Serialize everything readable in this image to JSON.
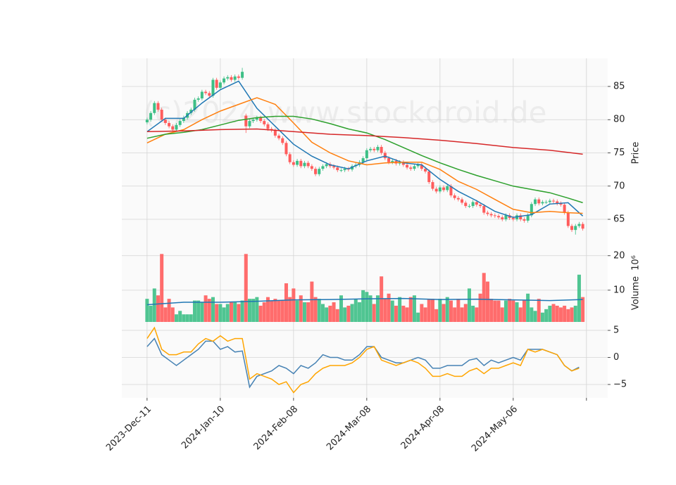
{
  "watermark": "(c)2024 www.stockdroid.de",
  "chart_data": [
    {
      "type": "candlestick",
      "ylabel": "Price",
      "ylim": [
        60.77,
        89.23
      ],
      "yticks": [
        65,
        70,
        75,
        80,
        85
      ],
      "xlim": [
        -6.9,
        125.8
      ],
      "grid": true,
      "up_color": "#3dbf86",
      "down_color": "#ff5c5c",
      "open": [
        79.6,
        80.0,
        81.0,
        82.5,
        81.5,
        80.0,
        79.5,
        79.0,
        78.5,
        79.2,
        79.8,
        80.3,
        81.0,
        81.5,
        83.0,
        83.2,
        84.2,
        84.0,
        83.6,
        86.0,
        84.8,
        85.6,
        86.2,
        86.4,
        86.0,
        86.5,
        86.3,
        80.6,
        79.0,
        79.8,
        80.0,
        80.3,
        79.8,
        79.3,
        78.6,
        78.4,
        77.6,
        77.2,
        76.5,
        74.8,
        73.6,
        73.2,
        73.8,
        73.0,
        73.5,
        73.0,
        72.6,
        71.8,
        72.6,
        73.0,
        73.3,
        73.0,
        72.8,
        72.4,
        72.4,
        72.6,
        72.5,
        73.0,
        73.2,
        73.6,
        74.2,
        75.4,
        75.6,
        75.4,
        75.9,
        75.0,
        74.2,
        73.6,
        73.8,
        73.4,
        73.6,
        73.2,
        72.8,
        72.6,
        73.0,
        73.2,
        72.6,
        72.2,
        70.6,
        69.6,
        69.2,
        69.8,
        69.4,
        70.0,
        68.6,
        68.2,
        68.0,
        67.5,
        67.0,
        67.0,
        67.6,
        67.2,
        67.0,
        66.0,
        65.8,
        65.6,
        65.5,
        65.3,
        65.0,
        65.6,
        65.2,
        65.0,
        65.6,
        65.0,
        64.8,
        65.6,
        67.3,
        68.0,
        67.4,
        67.6,
        67.6,
        67.8,
        67.7,
        67.4,
        67.2,
        66.0,
        64.0,
        63.4,
        64.0,
        64.3
      ],
      "high": [
        80.3,
        81.3,
        82.8,
        82.8,
        81.8,
        80.3,
        79.8,
        79.3,
        79.5,
        80.1,
        80.6,
        81.3,
        81.8,
        83.3,
        83.5,
        84.5,
        84.5,
        84.3,
        86.3,
        86.3,
        85.9,
        86.5,
        86.7,
        86.7,
        86.8,
        86.8,
        87.8,
        80.9,
        80.1,
        80.3,
        80.6,
        80.6,
        80.1,
        79.6,
        78.9,
        78.7,
        77.9,
        77.5,
        76.8,
        75.1,
        73.9,
        74.1,
        74.1,
        73.8,
        73.8,
        73.3,
        72.9,
        72.9,
        73.3,
        73.6,
        73.6,
        73.3,
        73.1,
        72.7,
        72.9,
        72.9,
        73.3,
        73.5,
        73.9,
        74.5,
        75.7,
        75.9,
        75.9,
        76.2,
        76.2,
        75.3,
        74.5,
        74.1,
        74.1,
        73.9,
        73.9,
        73.5,
        73.1,
        73.3,
        73.5,
        73.5,
        72.9,
        72.5,
        70.9,
        69.9,
        70.1,
        70.1,
        70.3,
        70.3,
        68.9,
        68.5,
        68.3,
        67.8,
        67.3,
        67.9,
        67.9,
        67.5,
        67.3,
        66.3,
        66.1,
        65.9,
        65.8,
        65.6,
        65.9,
        65.9,
        65.5,
        65.9,
        65.9,
        65.3,
        65.9,
        67.6,
        68.3,
        68.3,
        67.9,
        67.9,
        68.1,
        68.1,
        68.0,
        67.7,
        67.5,
        66.3,
        64.3,
        64.3,
        64.6,
        64.6
      ],
      "low": [
        79.3,
        79.7,
        80.7,
        81.2,
        79.7,
        79.2,
        78.7,
        78.2,
        78.2,
        78.9,
        79.5,
        80.0,
        80.7,
        81.2,
        82.7,
        82.9,
        83.7,
        83.3,
        83.3,
        84.5,
        84.5,
        85.3,
        85.9,
        85.7,
        85.7,
        86.0,
        86.0,
        78.0,
        78.7,
        79.5,
        79.7,
        79.5,
        79.0,
        78.3,
        78.1,
        77.3,
        76.9,
        76.2,
        74.5,
        73.3,
        72.9,
        72.9,
        72.7,
        72.7,
        72.7,
        72.3,
        71.5,
        71.5,
        72.3,
        72.7,
        72.7,
        72.5,
        72.1,
        72.1,
        72.1,
        72.2,
        72.2,
        72.7,
        72.9,
        73.3,
        73.9,
        75.1,
        75.1,
        75.1,
        74.7,
        73.9,
        73.3,
        73.3,
        73.1,
        73.1,
        72.9,
        72.5,
        72.3,
        72.3,
        72.7,
        72.3,
        71.9,
        70.3,
        69.3,
        68.9,
        68.9,
        69.1,
        69.1,
        68.3,
        67.9,
        67.7,
        67.2,
        66.7,
        66.7,
        66.7,
        66.9,
        66.7,
        65.7,
        65.5,
        65.3,
        65.2,
        65.0,
        64.7,
        64.7,
        64.9,
        64.7,
        64.7,
        64.7,
        64.5,
        64.5,
        65.3,
        67.0,
        67.1,
        67.1,
        67.3,
        67.3,
        67.4,
        67.1,
        66.9,
        65.7,
        63.7,
        63.1,
        62.7,
        63.7,
        63.3
      ],
      "close": [
        80.0,
        81.0,
        82.5,
        81.5,
        80.0,
        79.5,
        79.0,
        78.5,
        79.2,
        79.8,
        80.3,
        81.0,
        81.5,
        83.0,
        83.2,
        84.2,
        84.0,
        83.6,
        86.0,
        84.8,
        85.6,
        86.2,
        86.4,
        86.0,
        86.5,
        86.3,
        87.2,
        79.0,
        79.8,
        80.0,
        80.3,
        79.8,
        79.3,
        78.6,
        78.4,
        77.6,
        77.2,
        76.5,
        74.8,
        73.6,
        73.2,
        73.8,
        73.0,
        73.5,
        73.0,
        72.6,
        71.8,
        72.6,
        73.0,
        73.3,
        73.0,
        72.8,
        72.4,
        72.4,
        72.6,
        72.5,
        73.0,
        73.2,
        73.6,
        74.2,
        75.4,
        75.6,
        75.4,
        75.9,
        75.0,
        74.2,
        73.6,
        73.8,
        73.4,
        73.6,
        73.2,
        72.8,
        72.6,
        73.0,
        73.2,
        72.6,
        72.2,
        70.6,
        69.6,
        69.2,
        69.8,
        69.4,
        70.0,
        68.6,
        68.2,
        68.0,
        67.5,
        67.0,
        67.0,
        67.6,
        67.2,
        67.0,
        66.0,
        65.8,
        65.6,
        65.5,
        65.3,
        65.0,
        65.6,
        65.2,
        65.0,
        65.6,
        65.0,
        64.8,
        65.6,
        67.3,
        68.0,
        67.4,
        67.6,
        67.6,
        67.8,
        67.7,
        67.4,
        67.2,
        66.0,
        64.0,
        63.4,
        64.0,
        64.3,
        63.6
      ],
      "series": [
        {
          "color": "#1f77b4",
          "x": [
            0,
            5,
            10,
            15,
            20,
            25,
            30,
            35,
            40,
            45,
            50,
            55,
            60,
            65,
            70,
            75,
            80,
            85,
            90,
            95,
            100,
            105,
            110,
            115,
            119
          ],
          "values": [
            78.2,
            80.2,
            80.2,
            82.5,
            84.5,
            85.8,
            81.7,
            79.0,
            76.3,
            74.5,
            73.2,
            72.6,
            73.8,
            74.5,
            73.5,
            73.2,
            71.0,
            69.2,
            67.8,
            66.2,
            65.3,
            65.7,
            67.3,
            67.5,
            65.5
          ]
        },
        {
          "color": "#ff7f0e",
          "x": [
            0,
            5,
            10,
            15,
            20,
            25,
            30,
            35,
            40,
            45,
            50,
            55,
            60,
            65,
            70,
            75,
            80,
            85,
            90,
            95,
            100,
            105,
            110,
            115,
            119
          ],
          "values": [
            76.5,
            77.8,
            78.5,
            80.0,
            81.3,
            82.3,
            83.3,
            82.3,
            79.5,
            76.6,
            75.0,
            73.8,
            73.2,
            73.5,
            73.6,
            73.6,
            72.5,
            70.7,
            69.5,
            68.0,
            66.5,
            66.0,
            66.2,
            66.0,
            65.9
          ]
        },
        {
          "color": "#2ca02c",
          "x": [
            0,
            5,
            10,
            15,
            20,
            25,
            30,
            35,
            40,
            45,
            50,
            55,
            60,
            65,
            70,
            75,
            80,
            85,
            90,
            95,
            100,
            105,
            110,
            115,
            119
          ],
          "values": [
            77.2,
            77.8,
            78.1,
            78.5,
            79.2,
            79.9,
            80.3,
            80.5,
            80.5,
            80.1,
            79.4,
            78.6,
            78.0,
            77.0,
            75.8,
            74.6,
            73.5,
            72.5,
            71.6,
            70.8,
            70.0,
            69.5,
            69.0,
            68.2,
            67.5
          ]
        },
        {
          "color": "#d62728",
          "x": [
            0,
            10,
            20,
            30,
            40,
            50,
            60,
            70,
            80,
            90,
            100,
            110,
            119
          ],
          "values": [
            78.2,
            78.3,
            78.5,
            78.6,
            78.2,
            77.8,
            77.6,
            77.3,
            76.9,
            76.4,
            75.8,
            75.4,
            74.8
          ]
        }
      ]
    },
    {
      "type": "bar",
      "ylabel": "Volume",
      "scale_label": "10⁶",
      "ylim": [
        0.8,
        22.4
      ],
      "yticks": [
        10,
        20
      ],
      "xlim": [
        -6.9,
        125.8
      ],
      "grid": true,
      "values": [
        7.5,
        5.5,
        10.5,
        8.5,
        20.5,
        5,
        7.5,
        5,
        3,
        4,
        3,
        3,
        3,
        7,
        7,
        6.5,
        8.5,
        7.5,
        8,
        6,
        6,
        5,
        6,
        6.5,
        6.5,
        6,
        7,
        20.5,
        7.5,
        7.5,
        8,
        5.5,
        6.5,
        8,
        7,
        7.5,
        7,
        7,
        12,
        8,
        10.5,
        7,
        8.5,
        6.5,
        6.5,
        12.5,
        8,
        7.5,
        6,
        5,
        5.5,
        6.5,
        4.5,
        8.5,
        5,
        5.5,
        6,
        7.5,
        6.5,
        10,
        9.5,
        8.5,
        6,
        8.5,
        14,
        7.5,
        9,
        7,
        5.5,
        8,
        5.5,
        5,
        8,
        8.5,
        3.5,
        6,
        5,
        7.5,
        7.5,
        4.5,
        7.5,
        6,
        8,
        7,
        5,
        7.5,
        5,
        6,
        10.5,
        5.5,
        5,
        9,
        15,
        12.5,
        7.5,
        7,
        7,
        5,
        7,
        7.5,
        7,
        6.5,
        5,
        7,
        9,
        5,
        4,
        7.5,
        3.5,
        4.5,
        5.5,
        6,
        5.5,
        5,
        5.5,
        4.5,
        5,
        5.5,
        14.5,
        8
      ],
      "series": [
        {
          "color": "#1f77b4",
          "x": [
            0,
            10,
            20,
            30,
            40,
            50,
            60,
            70,
            80,
            90,
            100,
            110,
            119
          ],
          "values": [
            5.8,
            6.5,
            6.5,
            6.8,
            7.2,
            7.3,
            7.5,
            7.6,
            7.3,
            7.4,
            7.2,
            7.0,
            7.3
          ]
        }
      ]
    },
    {
      "type": "line",
      "ylim": [
        -7.47,
        6.56
      ],
      "yticks": [
        5,
        0,
        {
          "value": -5,
          "label": "−5"
        }
      ],
      "xlim": [
        -6.9,
        125.8
      ],
      "grid": true,
      "xticks": [
        {
          "value": 0,
          "label": "2023-Dec-11"
        },
        {
          "value": 20,
          "label": "2024-Jan-10"
        },
        {
          "value": 40,
          "label": "2024-Feb-08"
        },
        {
          "value": 60,
          "label": "2024-Mar-08"
        },
        {
          "value": 80,
          "label": "2024-Apr-08"
        },
        {
          "value": 100,
          "label": "2024-May-06"
        },
        {
          "value": 120,
          "label": null
        }
      ],
      "series": [
        {
          "color": "#4682b4",
          "x": [
            0,
            2,
            4,
            6,
            8,
            10,
            12,
            14,
            16,
            18,
            20,
            22,
            24,
            26,
            28,
            30,
            32,
            34,
            36,
            38,
            40,
            42,
            44,
            46,
            48,
            50,
            52,
            54,
            56,
            58,
            60,
            62,
            64,
            66,
            68,
            70,
            72,
            74,
            76,
            78,
            80,
            82,
            84,
            86,
            88,
            90,
            92,
            94,
            96,
            98,
            100,
            102,
            104,
            106,
            108,
            110,
            112,
            114,
            116,
            118
          ],
          "values": [
            2.0,
            3.5,
            0.5,
            -0.5,
            -1.5,
            -0.5,
            0.5,
            1.5,
            3.0,
            3.0,
            1.5,
            2.0,
            1.0,
            1.2,
            -5.5,
            -3.5,
            -3.0,
            -2.5,
            -1.5,
            -2.0,
            -3.0,
            -1.5,
            -2.0,
            -1.0,
            0.5,
            0.0,
            0.0,
            -0.5,
            -0.5,
            0.5,
            2.0,
            2.0,
            0.0,
            -0.5,
            -1.0,
            -1.0,
            -0.5,
            0.0,
            -0.5,
            -2.0,
            -2.0,
            -1.5,
            -1.5,
            -1.5,
            -0.5,
            -0.2,
            -1.5,
            -0.5,
            -1.0,
            -0.5,
            0.0,
            -0.5,
            1.5,
            1.5,
            1.5,
            1.0,
            0.5,
            -1.5,
            -2.5,
            -1.8
          ]
        },
        {
          "color": "#ffa500",
          "x": [
            0,
            2,
            4,
            6,
            8,
            10,
            12,
            14,
            16,
            18,
            20,
            22,
            24,
            26,
            28,
            30,
            32,
            34,
            36,
            38,
            40,
            42,
            44,
            46,
            48,
            50,
            52,
            54,
            56,
            58,
            60,
            62,
            64,
            66,
            68,
            70,
            72,
            74,
            76,
            78,
            80,
            82,
            84,
            86,
            88,
            90,
            92,
            94,
            96,
            98,
            100,
            102,
            104,
            106,
            108,
            110,
            112,
            114,
            116,
            118
          ],
          "values": [
            3.5,
            5.5,
            1.5,
            0.5,
            0.5,
            1.0,
            1.0,
            2.5,
            3.5,
            3.0,
            4.0,
            3.0,
            3.5,
            3.5,
            -4.0,
            -3.0,
            -3.5,
            -4.0,
            -5.0,
            -4.5,
            -6.5,
            -5.0,
            -4.5,
            -3.0,
            -2.0,
            -1.5,
            -1.5,
            -1.5,
            -1.0,
            0.0,
            1.5,
            2.0,
            -0.5,
            -1.0,
            -1.5,
            -1.0,
            -0.5,
            -1.0,
            -2.0,
            -3.5,
            -3.5,
            -3.0,
            -3.5,
            -3.5,
            -2.5,
            -2.0,
            -3.0,
            -2.0,
            -2.0,
            -1.5,
            -1.0,
            -1.5,
            1.5,
            1.0,
            1.5,
            1.0,
            0.5,
            -1.5,
            -2.5,
            -2.0
          ]
        }
      ]
    }
  ]
}
